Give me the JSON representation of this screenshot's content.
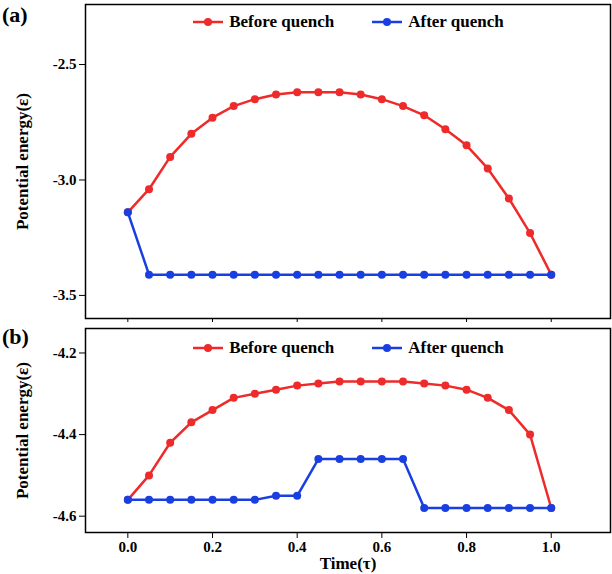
{
  "chart_data": [
    {
      "type": "line",
      "title": "(a)",
      "ylabel": "Potential energy(ε)",
      "x": [
        0,
        0.05,
        0.1,
        0.15,
        0.2,
        0.25,
        0.3,
        0.35,
        0.4,
        0.45,
        0.5,
        0.55,
        0.6,
        0.65,
        0.7,
        0.75,
        0.8,
        0.85,
        0.9,
        0.95,
        1.0
      ],
      "xlim": [
        -0.1,
        1.14
      ],
      "xticks": [
        {
          "value": 0,
          "label": "0.0"
        },
        {
          "value": 0.2,
          "label": "0.2"
        },
        {
          "value": 0.4,
          "label": "0.4"
        },
        {
          "value": 0.6,
          "label": "0.6"
        },
        {
          "value": 0.8,
          "label": "0.8"
        },
        {
          "value": 1,
          "label": "1.0"
        }
      ],
      "ylim": [
        -3.6,
        -2.24
      ],
      "yticks": [
        {
          "value": -3.5,
          "label": "-3.5"
        },
        {
          "value": -3,
          "label": "-3.0"
        },
        {
          "value": -2.5,
          "label": "-2.5"
        }
      ],
      "tick_labels": "y",
      "legend": "top",
      "series": [
        {
          "name": "Before quench",
          "color": "#ee2a2a",
          "marker": "circle",
          "values": [
            -3.14,
            -3.04,
            -2.9,
            -2.8,
            -2.73,
            -2.68,
            -2.65,
            -2.63,
            -2.62,
            -2.62,
            -2.62,
            -2.63,
            -2.65,
            -2.68,
            -2.72,
            -2.78,
            -2.85,
            -2.95,
            -3.08,
            -3.23,
            -3.41
          ]
        },
        {
          "name": "After quench",
          "color": "#1a3fe0",
          "marker": "circle",
          "values": [
            -3.14,
            -3.41,
            -3.41,
            -3.41,
            -3.41,
            -3.41,
            -3.41,
            -3.41,
            -3.41,
            -3.41,
            -3.41,
            -3.41,
            -3.41,
            -3.41,
            -3.41,
            -3.41,
            -3.41,
            -3.41,
            -3.41,
            -3.41,
            -3.41
          ]
        }
      ]
    },
    {
      "type": "line",
      "title": "(b)",
      "ylabel": "Potential energy(ε)",
      "xlabel": "Time(τ)",
      "x": [
        0,
        0.05,
        0.1,
        0.15,
        0.2,
        0.25,
        0.3,
        0.35,
        0.4,
        0.45,
        0.5,
        0.55,
        0.6,
        0.65,
        0.7,
        0.75,
        0.8,
        0.85,
        0.9,
        0.95,
        1.0
      ],
      "xlim": [
        -0.1,
        1.14
      ],
      "xticks": [
        {
          "value": 0,
          "label": "0.0"
        },
        {
          "value": 0.2,
          "label": "0.2"
        },
        {
          "value": 0.4,
          "label": "0.4"
        },
        {
          "value": 0.6,
          "label": "0.6"
        },
        {
          "value": 0.8,
          "label": "0.8"
        },
        {
          "value": 1,
          "label": "1.0"
        }
      ],
      "ylim": [
        -4.64,
        -4.14
      ],
      "yticks": [
        {
          "value": -4.6,
          "label": "-4.6"
        },
        {
          "value": -4.4,
          "label": "-4.4"
        },
        {
          "value": -4.2,
          "label": "-4.2"
        }
      ],
      "legend": "top",
      "series": [
        {
          "name": "Before quench",
          "color": "#ee2a2a",
          "marker": "circle",
          "values": [
            -4.56,
            -4.5,
            -4.42,
            -4.37,
            -4.34,
            -4.31,
            -4.3,
            -4.29,
            -4.28,
            -4.275,
            -4.27,
            -4.27,
            -4.27,
            -4.27,
            -4.275,
            -4.28,
            -4.29,
            -4.31,
            -4.34,
            -4.4,
            -4.58
          ]
        },
        {
          "name": "After quench",
          "color": "#1a3fe0",
          "marker": "circle",
          "values": [
            -4.56,
            -4.56,
            -4.56,
            -4.56,
            -4.56,
            -4.56,
            -4.56,
            -4.55,
            -4.55,
            -4.46,
            -4.46,
            -4.46,
            -4.46,
            -4.46,
            -4.58,
            -4.58,
            -4.58,
            -4.58,
            -4.58,
            -4.58,
            -4.58
          ]
        }
      ]
    }
  ]
}
